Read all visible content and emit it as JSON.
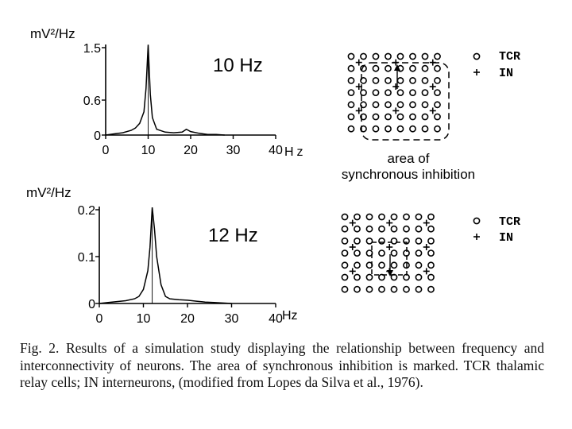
{
  "chart_data": [
    {
      "type": "line",
      "title": "10 Hz",
      "ylabel": "mV²/Hz",
      "xlabel": "Hz",
      "xlim": [
        0,
        40
      ],
      "ylim": [
        0,
        1.5
      ],
      "x_ticks": [
        "0",
        "10",
        "20",
        "30",
        "40"
      ],
      "y_ticks": [
        "0",
        "0.6",
        "1.5"
      ],
      "peak_x": 10,
      "x": [
        0,
        2,
        4,
        6,
        7,
        8,
        9,
        9.5,
        10,
        10.5,
        11,
        12,
        14,
        16,
        18,
        19,
        20,
        22,
        24,
        26,
        28
      ],
      "y": [
        0.0,
        0.02,
        0.04,
        0.08,
        0.12,
        0.2,
        0.4,
        0.8,
        1.55,
        0.7,
        0.3,
        0.1,
        0.05,
        0.04,
        0.05,
        0.1,
        0.06,
        0.03,
        0.01,
        0.01,
        0.0
      ]
    },
    {
      "type": "line",
      "title": "12 Hz",
      "ylabel": "mV²/Hz",
      "xlabel": "Hz",
      "xlim": [
        0,
        40
      ],
      "ylim": [
        0,
        0.2
      ],
      "x_ticks": [
        "0",
        "10",
        "20",
        "30",
        "40"
      ],
      "y_ticks": [
        "0",
        "0.1",
        "0.2"
      ],
      "peak_x": 12,
      "x": [
        0,
        2,
        4,
        6,
        8,
        9,
        10,
        11,
        11.5,
        12,
        12.5,
        13,
        14,
        15,
        16,
        18,
        20,
        22,
        24,
        26,
        28,
        30
      ],
      "y": [
        0.0,
        0.002,
        0.004,
        0.006,
        0.01,
        0.015,
        0.03,
        0.07,
        0.12,
        0.205,
        0.16,
        0.1,
        0.04,
        0.015,
        0.01,
        0.008,
        0.007,
        0.005,
        0.003,
        0.002,
        0.001,
        0.0
      ]
    }
  ],
  "grids": {
    "top": {
      "label": "area of synchronous inhibition"
    }
  },
  "legend": {
    "tcr_label": "TCR",
    "in_label": "IN",
    "tcr_symbol": "o",
    "in_symbol": "+"
  },
  "caption": "Fig. 2. Results of a simulation study displaying the relationship between frequency and interconnectivity of neurons. The area of synchronous inhibition is marked. TCR thalamic relay cells; IN interneurons, (modified from Lopes da Silva et al., 1976)."
}
